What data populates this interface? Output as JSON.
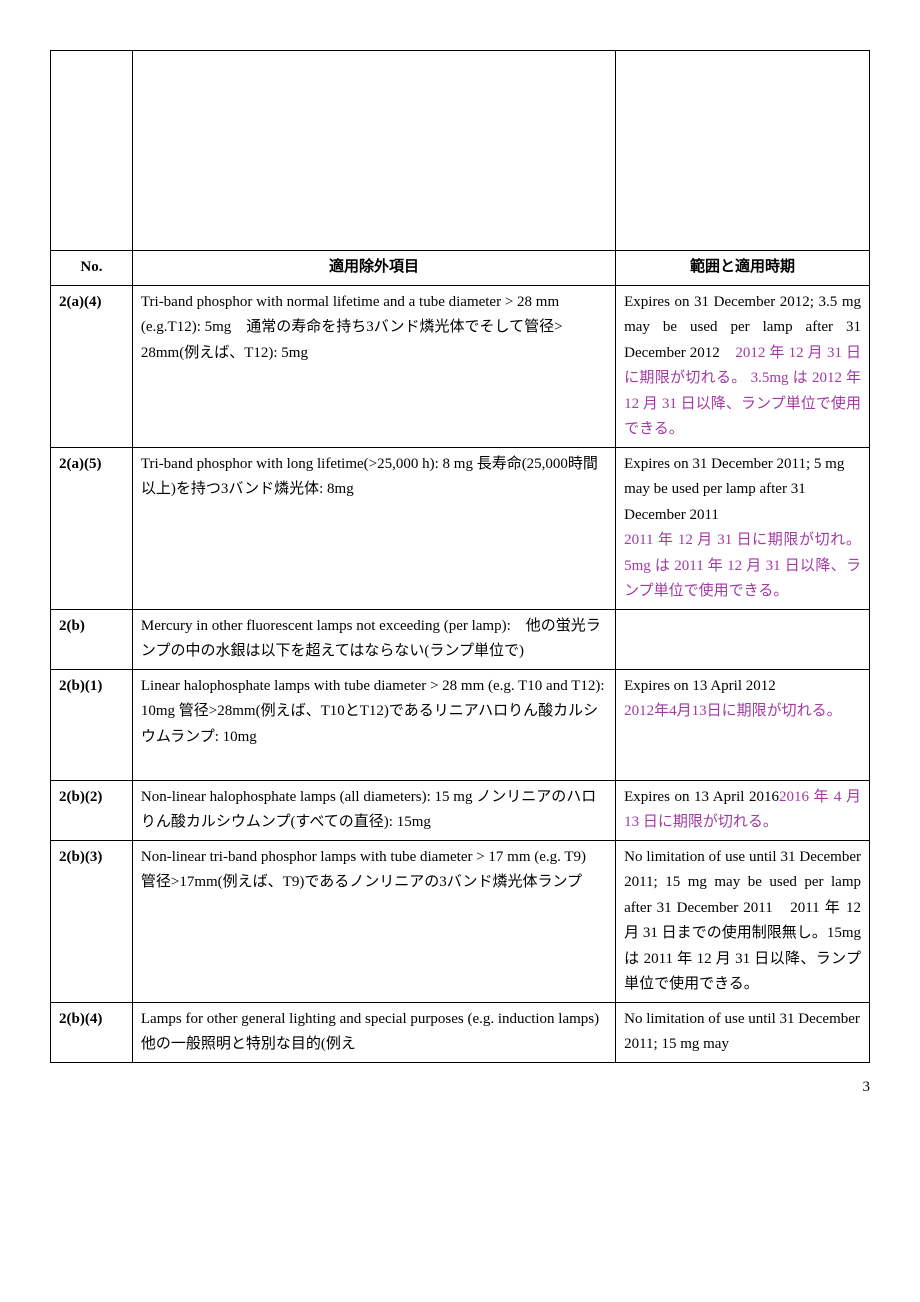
{
  "headers": {
    "no": "No.",
    "exemption": "適用除外項目",
    "scope": "範囲と適用時期"
  },
  "rows": [
    {
      "no": "2(a)(4)",
      "col2": "Tri-band phosphor with normal lifetime and a tube diameter > 28 mm (e.g.T12): 5mg　通常の寿命を持ち3バンド燐光体でそして管径> 28mm(例えば、T12): 5mg",
      "col3_plain": "Expires on 31 December 2012; 3.5 mg may be used per lamp after 31 December 2012　",
      "col3_hl": "2012 年 12 月 31 日に期限が切れる。 3.5mg は 2012 年 12 月 31 日以降、ランプ単位で使用できる。",
      "justify3": true
    },
    {
      "no": "2(a)(5)",
      "col2": "Tri-band phosphor with long lifetime(>25,000 h): 8 mg 長寿命(25,000時間以上)を持つ3バンド燐光体: 8mg",
      "col3_plain": "Expires on 31 December 2011; 5 mg may be used per lamp after 31 December 2011",
      "col3_hl": "2011 年 12 月 31 日に期限が切れ。 5mg は 2011 年 12 月 31 日以降、ランプ単位で使用できる。",
      "break": true,
      "justify3hl": true
    },
    {
      "no": "2(b)",
      "col2": "Mercury in other fluorescent lamps not exceeding (per lamp):　他の蛍光ランプの中の水銀は以下を超えてはならない(ランプ単位で)",
      "col3_plain": "",
      "col3_hl": ""
    },
    {
      "no": "2(b)(1)",
      "col2": "Linear halophosphate lamps with tube diameter > 28 mm (e.g. T10 and T12): 10mg 管径>28mm(例えば、T10とT12)であるリニアハロりん酸カルシウムランプ: 10mg",
      "col3_plain": "Expires on 13 April 2012",
      "col3_hl": "2012年4月13日に期限が切れる。",
      "break": true,
      "extra_space": true
    },
    {
      "no": "2(b)(2)",
      "col2": "Non-linear halophosphate lamps (all diameters): 15 mg ノンリニアのハロりん酸カルシウムンプ(すべての直径): 15mg",
      "col3_plain": "Expires on 13 April 2016",
      "col3_hl": "2016 年 4 月 13 日に期限が切れる。",
      "justify3": true
    },
    {
      "no": "2(b)(3)",
      "col2": "Non-linear tri-band phosphor lamps with tube diameter > 17 mm (e.g. T9)\n管径>17mm(例えば、T9)であるノンリニアの3バンド燐光体ランプ",
      "col3_plain": "No limitation of use until 31 December 2011; 15 mg may be used per lamp after 31 December 2011　2011 年 12 月 31 日までの使用制限無し。15mg は 2011 年 12 月 31 日以降、ランプ単位で使用できる。",
      "col3_hl": "",
      "justify3": true,
      "extra_space": true
    },
    {
      "no": "2(b)(4)",
      "col2": "Lamps for other general lighting and special purposes (e.g. induction lamps)　他の一般照明と特別な目的(例え",
      "col3_plain": "No limitation of use until 31 December 2011; 15 mg may",
      "col3_hl": ""
    }
  ],
  "pageNumber": "3",
  "colors": {
    "highlight": "#a23aa2",
    "text": "#000000",
    "background": "#ffffff",
    "border": "#000000"
  },
  "fontsize_body": 15
}
